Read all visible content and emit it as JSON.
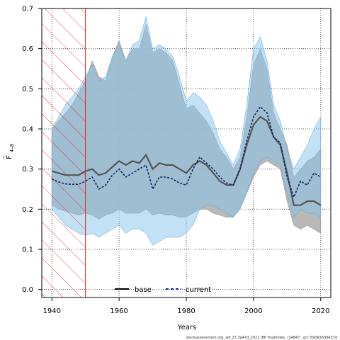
{
  "chart_data": {
    "type": "line",
    "ylabel_main": "F",
    "ylabel_sub": "4–8",
    "xlabel": "Years",
    "xlim": [
      1937,
      2023
    ],
    "ylim": [
      -0.02,
      0.7
    ],
    "x_ticks": [
      1940,
      1960,
      1980,
      2000,
      2020
    ],
    "x_tick_labels": [
      "1940",
      "1960",
      "1980",
      "2000",
      "2020"
    ],
    "y_ticks": [
      0.0,
      0.1,
      0.2,
      0.3,
      0.4,
      0.5,
      0.6,
      0.7
    ],
    "y_tick_labels": [
      "0.0",
      "0.1",
      "0.2",
      "0.3",
      "0.4",
      "0.5",
      "0.6",
      "0.7"
    ],
    "grid": true,
    "grid_style": "dotted",
    "shaded_region": {
      "x_start": 1937,
      "x_end": 1950,
      "fill": "hatched",
      "color": "#e41a1c"
    },
    "legend": {
      "position": "bottom-center"
    },
    "footer": "stockassessment.org, wit.27.3a47d_2021 IBP finalIndex, r14847 , git: 69d926d0437d",
    "colors": {
      "base": "#000000",
      "current": "#0a2a66",
      "base_band": "#b0b0b0",
      "current_band": "#87c4e9",
      "hatch": "#e41a1c"
    },
    "x": [
      1940,
      1942,
      1944,
      1946,
      1948,
      1950,
      1952,
      1954,
      1956,
      1958,
      1960,
      1962,
      1964,
      1966,
      1968,
      1970,
      1972,
      1974,
      1976,
      1978,
      1980,
      1982,
      1984,
      1986,
      1988,
      1990,
      1992,
      1994,
      1996,
      1998,
      2000,
      2002,
      2004,
      2006,
      2008,
      2010,
      2012,
      2014,
      2016,
      2018,
      2020
    ],
    "series": [
      {
        "name": "base",
        "line_style": "solid",
        "values": [
          0.295,
          0.29,
          0.285,
          0.285,
          0.285,
          0.295,
          0.3,
          0.285,
          0.29,
          0.305,
          0.32,
          0.31,
          0.32,
          0.315,
          0.335,
          0.3,
          0.315,
          0.31,
          0.31,
          0.3,
          0.29,
          0.31,
          0.32,
          0.31,
          0.29,
          0.27,
          0.26,
          0.26,
          0.3,
          0.36,
          0.41,
          0.43,
          0.42,
          0.38,
          0.36,
          0.29,
          0.21,
          0.21,
          0.22,
          0.22,
          0.21
        ],
        "lower": [
          0.21,
          0.2,
          0.195,
          0.19,
          0.185,
          0.19,
          0.185,
          0.175,
          0.185,
          0.19,
          0.2,
          0.19,
          0.19,
          0.19,
          0.2,
          0.185,
          0.19,
          0.185,
          0.185,
          0.18,
          0.18,
          0.19,
          0.2,
          0.2,
          0.19,
          0.185,
          0.18,
          0.18,
          0.2,
          0.24,
          0.28,
          0.31,
          0.32,
          0.31,
          0.3,
          0.22,
          0.16,
          0.15,
          0.16,
          0.15,
          0.14
        ],
        "upper": [
          0.4,
          0.42,
          0.44,
          0.46,
          0.49,
          0.52,
          0.57,
          0.53,
          0.52,
          0.58,
          0.62,
          0.57,
          0.6,
          0.6,
          0.66,
          0.59,
          0.6,
          0.59,
          0.57,
          0.51,
          0.45,
          0.46,
          0.44,
          0.42,
          0.39,
          0.35,
          0.33,
          0.3,
          0.33,
          0.43,
          0.56,
          0.6,
          0.55,
          0.44,
          0.4,
          0.36,
          0.28,
          0.3,
          0.32,
          0.33,
          0.35
        ]
      },
      {
        "name": "current",
        "line_style": "dashed",
        "values": [
          0.275,
          0.268,
          0.263,
          0.262,
          0.262,
          0.27,
          0.28,
          0.25,
          0.26,
          0.285,
          0.3,
          0.28,
          0.29,
          0.3,
          0.31,
          0.25,
          0.28,
          0.28,
          0.275,
          0.265,
          0.26,
          0.3,
          0.33,
          0.315,
          0.3,
          0.28,
          0.265,
          0.26,
          0.3,
          0.37,
          0.43,
          0.455,
          0.44,
          0.38,
          0.365,
          0.28,
          0.23,
          0.27,
          0.26,
          0.29,
          0.28
        ],
        "lower": [
          0.2,
          0.18,
          0.16,
          0.15,
          0.14,
          0.135,
          0.14,
          0.13,
          0.14,
          0.15,
          0.16,
          0.14,
          0.15,
          0.15,
          0.14,
          0.11,
          0.12,
          0.13,
          0.13,
          0.13,
          0.14,
          0.16,
          0.2,
          0.21,
          0.21,
          0.2,
          0.19,
          0.18,
          0.2,
          0.24,
          0.29,
          0.32,
          0.33,
          0.32,
          0.31,
          0.24,
          0.18,
          0.2,
          0.19,
          0.19,
          0.18
        ],
        "upper": [
          0.4,
          0.43,
          0.46,
          0.48,
          0.5,
          0.53,
          0.56,
          0.52,
          0.53,
          0.58,
          0.61,
          0.57,
          0.61,
          0.62,
          0.68,
          0.6,
          0.61,
          0.6,
          0.58,
          0.53,
          0.47,
          0.49,
          0.48,
          0.46,
          0.42,
          0.37,
          0.34,
          0.31,
          0.35,
          0.46,
          0.6,
          0.63,
          0.57,
          0.46,
          0.42,
          0.35,
          0.3,
          0.33,
          0.36,
          0.4,
          0.43
        ]
      }
    ]
  }
}
